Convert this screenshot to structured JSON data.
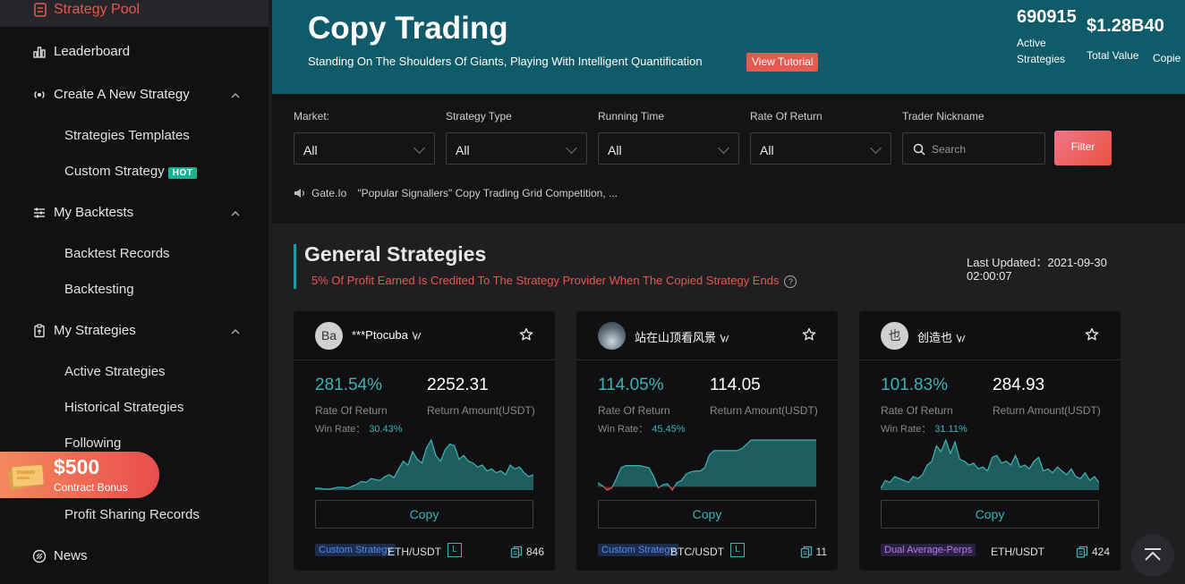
{
  "sidebar": {
    "active_item": "Strategy Pool",
    "items": [
      {
        "label": "Leaderboard"
      },
      {
        "label": "Create A New Strategy"
      },
      {
        "label": "My Backtests"
      },
      {
        "label": "My Strategies"
      },
      {
        "label": "News"
      }
    ],
    "create_subitems": [
      "Strategies Templates",
      "Custom Strategy"
    ],
    "hot_badge": "HOT",
    "backtest_subitems": [
      "Backtest Records",
      "Backtesting"
    ],
    "my_strategies_subitems": [
      "Active Strategies",
      "Historical Strategies",
      "Following",
      "Profit Sharing Records"
    ]
  },
  "bonus": {
    "amount": "$500",
    "label": "Contract Bonus"
  },
  "banner": {
    "title": "Copy Trading",
    "subtitle": "Standing On The Shoulders Of Giants, Playing With Intelligent Quantification",
    "tutorial_label": "View Tutorial",
    "stats": [
      {
        "value": "690915",
        "label": "Active Strategies"
      },
      {
        "value": "$1.28B40",
        "label": "Total Value"
      },
      {
        "value": "",
        "label": "Copie"
      }
    ]
  },
  "filters": {
    "market": {
      "label": "Market:",
      "value": "All"
    },
    "strategy_type": {
      "label": "Strategy Type",
      "value": "All"
    },
    "running_time": {
      "label": "Running Time",
      "value": "All"
    },
    "rate_of_return": {
      "label": "Rate Of Return",
      "value": "All"
    },
    "nickname": {
      "label": "Trader Nickname",
      "placeholder": "Search"
    },
    "button": "Filter"
  },
  "ticker": {
    "source": "Gate.Io",
    "text": "\"Popular Signallers\"   Copy Trading Grid Competition, ..."
  },
  "section": {
    "title": "General Strategies",
    "note": "5% Of Profit Earned Is Credited To The Strategy Provider When The Copied Strategy Ends",
    "updated_label": "Last Updated：",
    "updated_date": "2021-09-30",
    "updated_time": "02:00:07"
  },
  "cards": [
    {
      "avatar_text": "Ba",
      "name": "***Ptocuba",
      "ror": "281.54%",
      "ror_label": "Rate Of Return",
      "amount": "2252.31",
      "amount_label": "Return Amount(USDT)",
      "win_label": "Win Rate：",
      "win_rate": "30.43%",
      "copy_label": "Copy",
      "tag": "Custom Strategy",
      "tag_color": "blue",
      "pair": "ETH/USDT",
      "leverage_badge": "L",
      "count": "846",
      "spark": [
        2,
        2,
        1,
        1,
        2,
        3,
        3,
        2,
        4,
        6,
        9,
        8,
        12,
        11,
        10,
        14,
        16,
        13,
        22,
        30,
        26,
        40,
        32,
        28,
        44,
        52,
        36,
        30,
        42,
        48,
        46,
        32,
        36,
        30,
        28,
        24,
        26,
        20,
        22,
        18,
        20,
        16,
        26,
        22,
        24,
        18,
        14,
        16
      ]
    },
    {
      "avatar_text": "",
      "name": "站在山顶看风景",
      "ror": "114.05%",
      "ror_label": "Rate Of Return",
      "amount": "114.05",
      "amount_label": "Return Amount(USDT)",
      "win_label": "Win Rate：",
      "win_rate": "45.45%",
      "copy_label": "Copy",
      "tag": "Custom Strategy",
      "tag_color": "blue",
      "pair": "BTC/USDT",
      "leverage_badge": "L",
      "count": "11",
      "spark": [
        4,
        1,
        -3,
        -1,
        8,
        18,
        20,
        20,
        20,
        20,
        19,
        18,
        10,
        -1,
        2,
        3,
        -3,
        4,
        6,
        12,
        14,
        15,
        15,
        18,
        30,
        34,
        34,
        34,
        34,
        34,
        34,
        36,
        40,
        44,
        44,
        44,
        44,
        44,
        44,
        44,
        44,
        44,
        44,
        44,
        44,
        44,
        44,
        44
      ]
    },
    {
      "avatar_text": "也",
      "name": "创造也",
      "ror": "101.83%",
      "ror_label": "Rate Of Return",
      "amount": "284.93",
      "amount_label": "Return Amount(USDT)",
      "win_label": "Win Rate：",
      "win_rate": "31.11%",
      "copy_label": "Copy",
      "tag": "Dual Average-Perps",
      "tag_color": "purple",
      "pair": "ETH/USDT",
      "leverage_badge": "",
      "count": "424",
      "spark": [
        2,
        10,
        8,
        14,
        12,
        10,
        8,
        14,
        12,
        16,
        26,
        30,
        46,
        40,
        52,
        38,
        50,
        32,
        30,
        26,
        28,
        22,
        24,
        20,
        34,
        36,
        28,
        30,
        26,
        36,
        24,
        26,
        22,
        30,
        34,
        20,
        22,
        18,
        24,
        20,
        16,
        22,
        14,
        12,
        18,
        10,
        14,
        8
      ]
    }
  ]
}
